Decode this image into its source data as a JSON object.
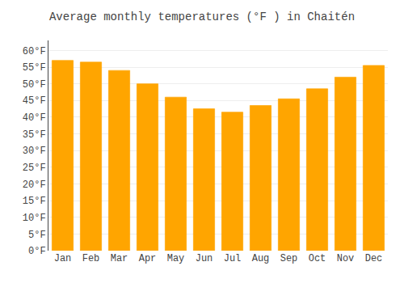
{
  "chart_data": {
    "type": "bar",
    "title": "Average monthly temperatures (°F ) in Chaitén",
    "categories": [
      "Jan",
      "Feb",
      "Mar",
      "Apr",
      "May",
      "Jun",
      "Jul",
      "Aug",
      "Sep",
      "Oct",
      "Nov",
      "Dec"
    ],
    "values": [
      57.0,
      56.5,
      54.0,
      50.0,
      46.0,
      42.5,
      41.5,
      43.5,
      45.5,
      48.5,
      52.0,
      55.5
    ],
    "color": "#FFA500",
    "ylim": [
      0,
      63
    ],
    "yticks": [
      {
        "value": 0,
        "label": "0°F"
      },
      {
        "value": 5,
        "label": "5°F"
      },
      {
        "value": 10,
        "label": "10°F"
      },
      {
        "value": 15,
        "label": "15°F"
      },
      {
        "value": 20,
        "label": "20°F"
      },
      {
        "value": 25,
        "label": "25°F"
      },
      {
        "value": 30,
        "label": "30°F"
      },
      {
        "value": 35,
        "label": "35°F"
      },
      {
        "value": 40,
        "label": "40°F"
      },
      {
        "value": 45,
        "label": "45°F"
      },
      {
        "value": 50,
        "label": "50°F"
      },
      {
        "value": 55,
        "label": "55°F"
      },
      {
        "value": 60,
        "label": "60°F"
      }
    ],
    "grid": true
  }
}
